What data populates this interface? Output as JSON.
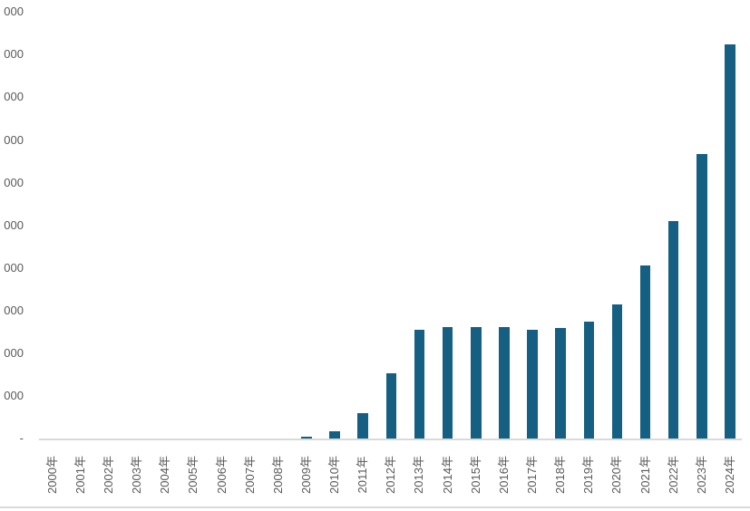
{
  "chart_data": {
    "type": "bar",
    "title": "",
    "legend": "none",
    "gridlines": "none",
    "categories": [
      "2000年",
      "2001年",
      "2002年",
      "2003年",
      "2004年",
      "2005年",
      "2006年",
      "2007年",
      "2008年",
      "2009年",
      "2010年",
      "2011年",
      "2012年",
      "2013年",
      "2014年",
      "2015年",
      "2016年",
      "2017年",
      "2018年",
      "2019年",
      "2020年",
      "2021年",
      "2022年",
      "2023年",
      "2024年"
    ],
    "values": [
      0,
      0,
      0,
      0,
      0,
      0,
      0,
      0,
      0,
      40,
      180,
      600,
      1520,
      2550,
      2620,
      2620,
      2610,
      2540,
      2590,
      2750,
      3150,
      4050,
      5100,
      6670,
      9250
    ],
    "xlabel": "",
    "ylabel": "",
    "ylim": [
      0,
      10000
    ],
    "y_tick_interval": 1000,
    "y_tick_labels_visible_top_to_bottom": [
      "000",
      "000",
      "000",
      "000",
      "000",
      "000",
      "000",
      "000",
      "000",
      "000",
      "-"
    ],
    "y_labels_truncated_at_left_edge": true,
    "colors": {
      "bar": "#156082",
      "axis_line": "#d9d9d9",
      "bottom_border": "#d9d9d9",
      "tick_label": "#595959"
    }
  }
}
